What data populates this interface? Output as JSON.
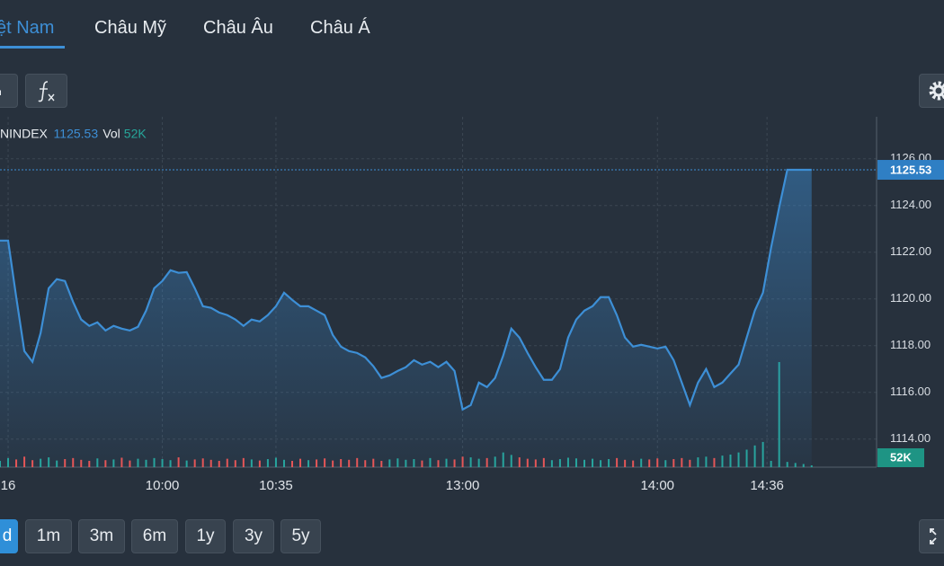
{
  "tabs": [
    "ệt Nam",
    "Châu Mỹ",
    "Châu Âu",
    "Châu Á"
  ],
  "ranges": [
    "d",
    "1m",
    "3m",
    "6m",
    "1y",
    "3y",
    "5y"
  ],
  "chart_data": {
    "type": "line",
    "symbol": "NINDEX",
    "xlim": [
      0,
      108
    ],
    "xticks": [
      {
        "value": 1,
        "label": "16"
      },
      {
        "value": 20,
        "label": "10:00"
      },
      {
        "value": 34,
        "label": "10:35"
      },
      {
        "value": 57,
        "label": "13:00"
      },
      {
        "value": 81,
        "label": "14:00"
      },
      {
        "value": 94.5,
        "label": "14:36"
      }
    ],
    "ylim": [
      1112.8,
      1127.8
    ],
    "yticks": [
      {
        "value": 1114,
        "label": "1114.00"
      },
      {
        "value": 1116,
        "label": "1116.00"
      },
      {
        "value": 1118,
        "label": "1118.00"
      },
      {
        "value": 1120,
        "label": "1120.00"
      },
      {
        "value": 1122,
        "label": "1122.00"
      },
      {
        "value": 1124,
        "label": "1124.00"
      },
      {
        "value": 1126,
        "label": "1126.00"
      }
    ],
    "y2lim": [
      0,
      10000000
    ],
    "grid": true,
    "series": [
      {
        "name": "NINDEX",
        "color": "#3d8fd6",
        "values": [
          1122.5,
          1122.5,
          1120.08,
          1117.77,
          1117.31,
          1118.54,
          1120.46,
          1120.85,
          1120.77,
          1119.88,
          1119.12,
          1118.85,
          1119.0,
          1118.65,
          1118.85,
          1118.73,
          1118.65,
          1118.81,
          1119.5,
          1120.46,
          1120.77,
          1121.23,
          1121.12,
          1121.15,
          1120.46,
          1119.69,
          1119.62,
          1119.42,
          1119.31,
          1119.12,
          1118.85,
          1119.12,
          1119.04,
          1119.31,
          1119.69,
          1120.27,
          1119.96,
          1119.69,
          1119.69,
          1119.5,
          1119.31,
          1118.46,
          1117.96,
          1117.77,
          1117.69,
          1117.5,
          1117.12,
          1116.62,
          1116.73,
          1116.92,
          1117.08,
          1117.38,
          1117.19,
          1117.31,
          1117.08,
          1117.31,
          1116.92,
          1115.27,
          1115.46,
          1116.42,
          1116.23,
          1116.62,
          1117.58,
          1118.73,
          1118.35,
          1117.69,
          1117.08,
          1116.54,
          1116.54,
          1117.0,
          1118.35,
          1119.12,
          1119.5,
          1119.69,
          1120.08,
          1120.08,
          1119.31,
          1118.35,
          1117.96,
          1118.04,
          1117.96,
          1117.88,
          1117.96,
          1117.38,
          1116.42,
          1115.46,
          1116.42,
          1117.0,
          1116.23,
          1116.42,
          1116.81,
          1117.19,
          1118.35,
          1119.5,
          1120.27,
          1122.19,
          1123.92,
          1125.53,
          1125.53,
          1125.53,
          1125.53
        ]
      },
      {
        "name": "Vol",
        "axis": "y2",
        "color": "#26a69a",
        "down_color": "#ef5350",
        "values": [
          180000,
          260000,
          220000,
          300000,
          200000,
          240000,
          280000,
          190000,
          230000,
          260000,
          210000,
          180000,
          250000,
          200000,
          220000,
          270000,
          190000,
          240000,
          210000,
          260000,
          230000,
          200000,
          280000,
          190000,
          220000,
          250000,
          210000,
          180000,
          240000,
          200000,
          260000,
          220000,
          190000,
          230000,
          270000,
          210000,
          180000,
          240000,
          200000,
          220000,
          250000,
          190000,
          230000,
          210000,
          260000,
          200000,
          240000,
          180000,
          220000,
          250000,
          210000,
          230000,
          190000,
          260000,
          200000,
          240000,
          220000,
          300000,
          280000,
          240000,
          260000,
          300000,
          420000,
          350000,
          280000,
          240000,
          220000,
          260000,
          200000,
          230000,
          270000,
          250000,
          210000,
          240000,
          200000,
          230000,
          260000,
          210000,
          190000,
          240000,
          220000,
          250000,
          200000,
          230000,
          260000,
          210000,
          280000,
          300000,
          260000,
          330000,
          360000,
          420000,
          500000,
          620000,
          720000,
          180000,
          3000000,
          150000,
          120000,
          90000,
          52000
        ],
        "value_labels": [
          null,
          null,
          null,
          null,
          null,
          null,
          null,
          null,
          null,
          null,
          null,
          null,
          null,
          null,
          null,
          null,
          null,
          null,
          null,
          null,
          null,
          null,
          null,
          null,
          null,
          null,
          null,
          null,
          null,
          null,
          null,
          null,
          null,
          null,
          null,
          null,
          null,
          null,
          null,
          null,
          null,
          null,
          null,
          null,
          null,
          null,
          null,
          null,
          null,
          null,
          null,
          null,
          null,
          null,
          null,
          null,
          null,
          null,
          null,
          null,
          null,
          null,
          null,
          null,
          null,
          null,
          null,
          null,
          null,
          null,
          null,
          null,
          null,
          null,
          null,
          null,
          null,
          null,
          null,
          null,
          null,
          null,
          null,
          null,
          null,
          null,
          null,
          null,
          null,
          null,
          null,
          null,
          null,
          null,
          null,
          null,
          null,
          null,
          null,
          null,
          "52K"
        ]
      }
    ]
  }
}
